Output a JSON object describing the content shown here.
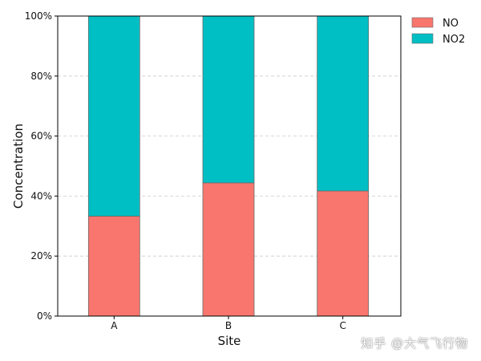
{
  "chart_data": {
    "type": "bar",
    "stacked": true,
    "percent": true,
    "categories": [
      "A",
      "B",
      "C"
    ],
    "series": [
      {
        "name": "NO",
        "values": [
          33.3,
          44.4,
          41.7
        ],
        "color": "#f8766d"
      },
      {
        "name": "NO2",
        "values": [
          66.7,
          55.6,
          58.3
        ],
        "color": "#00bfc4"
      }
    ],
    "xlabel": "Site",
    "ylabel": "Concentration",
    "ylim": [
      0,
      100
    ],
    "yticks": [
      "0%",
      "20%",
      "40%",
      "60%",
      "80%",
      "100%"
    ],
    "grid": "horizontal-dashed",
    "legend_position": "top-right-outside"
  },
  "watermark": "知乎 @大气飞行物"
}
